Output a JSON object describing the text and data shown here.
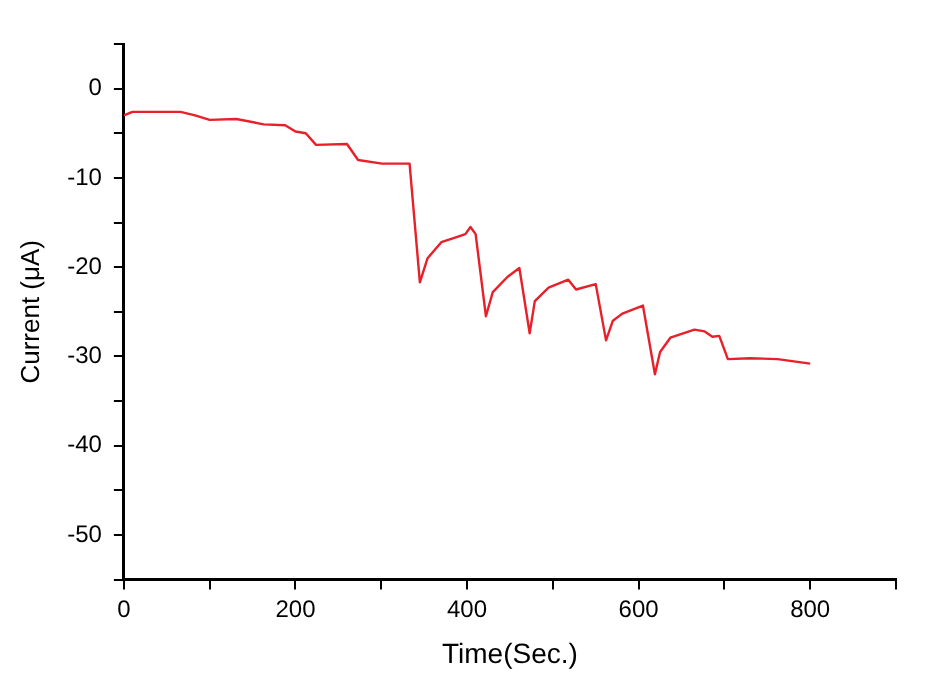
{
  "chart_data": {
    "type": "line",
    "xlabel": "Time(Sec.)",
    "ylabel": "Current (μA)",
    "xlim": [
      0,
      900
    ],
    "ylim": [
      -55,
      5
    ],
    "xticks": [
      0,
      {
        "value": 100,
        "label": null
      },
      200,
      {
        "value": 300,
        "label": null
      },
      400,
      {
        "value": 500,
        "label": null
      },
      600,
      {
        "value": 700,
        "label": null
      },
      800,
      {
        "value": 900,
        "label": null
      }
    ],
    "yticks": [
      {
        "value": -55,
        "label": null
      },
      -50,
      {
        "value": -45,
        "label": null
      },
      -40,
      {
        "value": -35,
        "label": null
      },
      -30,
      {
        "value": -25,
        "label": null
      },
      -20,
      {
        "value": -15,
        "label": null
      },
      -10,
      {
        "value": -5,
        "label": null
      },
      0,
      {
        "value": 5,
        "label": null
      }
    ],
    "grid": false,
    "legend": false,
    "marker": "none",
    "line_style": "solid",
    "series": [
      {
        "color": "#e8202a",
        "x": [
          0,
          10,
          66,
          83,
          100,
          131,
          163,
          188,
          200,
          212,
          224,
          260,
          273,
          301,
          333,
          345,
          354,
          370,
          386,
          398,
          404,
          410,
          422,
          430,
          447,
          461,
          473,
          479,
          495,
          518,
          527,
          550,
          562,
          570,
          581,
          605,
          619,
          625,
          637,
          665,
          677,
          686,
          694,
          704,
          730,
          762,
          800
        ],
        "values": [
          -3.0,
          -2.6,
          -2.6,
          -3.0,
          -3.5,
          -3.4,
          -4.0,
          -4.1,
          -4.8,
          -5.0,
          -6.3,
          -6.2,
          -8.0,
          -8.4,
          -8.4,
          -21.7,
          -19.0,
          -17.2,
          -16.7,
          -16.3,
          -15.5,
          -16.3,
          -25.5,
          -22.8,
          -21.1,
          -20.1,
          -27.4,
          -23.8,
          -22.3,
          -21.4,
          -22.5,
          -21.9,
          -28.2,
          -26.0,
          -25.2,
          -24.3,
          -32.0,
          -29.5,
          -27.9,
          -27.0,
          -27.2,
          -27.8,
          -27.7,
          -30.3,
          -30.2,
          -30.3,
          -30.8
        ]
      }
    ]
  }
}
